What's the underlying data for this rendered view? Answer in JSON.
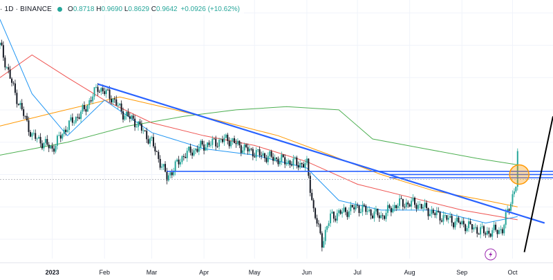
{
  "header": {
    "symbol": "· 1D · BINANCE",
    "open_label": "O",
    "open": "0.8718",
    "high_label": "H",
    "high": "0.9690",
    "low_label": "L",
    "low": "0.8629",
    "close_label": "C",
    "close": "0.9642",
    "change": "+0.0926 (+10.62%)"
  },
  "colors": {
    "up": "#26a69a",
    "down": "#131722",
    "trendline": "#2962ff",
    "ma_fast": "#2196f3",
    "ma_mid": "#ef5350",
    "ma_slow": "#ff9800",
    "ma_long": "#4caf50",
    "highlight": "#ff9800"
  },
  "chart_data": {
    "type": "candlestick",
    "xlabel": "",
    "ylabel": "",
    "x_ticks": [
      "2023",
      "Feb",
      "Mar",
      "Apr",
      "May",
      "Jun",
      "Jul",
      "Aug",
      "Sep",
      "Oct"
    ],
    "x_tick_bold": [
      "2023"
    ],
    "close_path": [
      [
        "2022-12-01",
        1.3
      ],
      [
        "2022-12-10",
        1.15
      ],
      [
        "2022-12-20",
        1.02
      ],
      [
        "2023-01-01",
        0.98
      ],
      [
        "2023-01-10",
        1.05
      ],
      [
        "2023-01-20",
        1.1
      ],
      [
        "2023-01-28",
        1.17
      ],
      [
        "2023-02-05",
        1.14
      ],
      [
        "2023-02-12",
        1.09
      ],
      [
        "2023-02-20",
        1.06
      ],
      [
        "2023-03-01",
        1.0
      ],
      [
        "2023-03-10",
        0.89
      ],
      [
        "2023-03-20",
        0.96
      ],
      [
        "2023-04-01",
        0.99
      ],
      [
        "2023-04-15",
        1.01
      ],
      [
        "2023-04-25",
        0.98
      ],
      [
        "2023-05-05",
        0.96
      ],
      [
        "2023-05-20",
        0.94
      ],
      [
        "2023-06-01",
        0.93
      ],
      [
        "2023-06-05",
        0.79
      ],
      [
        "2023-06-10",
        0.69
      ],
      [
        "2023-06-15",
        0.77
      ],
      [
        "2023-07-01",
        0.8
      ],
      [
        "2023-07-15",
        0.77
      ],
      [
        "2023-07-25",
        0.81
      ],
      [
        "2023-08-05",
        0.81
      ],
      [
        "2023-08-15",
        0.78
      ],
      [
        "2023-08-25",
        0.76
      ],
      [
        "2023-09-05",
        0.74
      ],
      [
        "2023-09-15",
        0.72
      ],
      [
        "2023-09-25",
        0.73
      ],
      [
        "2023-10-03",
        0.87
      ],
      [
        "2023-10-04",
        0.96
      ]
    ],
    "ma_fast": [
      [
        "2022-12-01",
        1.38
      ],
      [
        "2022-12-20",
        1.15
      ],
      [
        "2023-01-10",
        1.02
      ],
      [
        "2023-02-01",
        1.13
      ],
      [
        "2023-03-01",
        1.03
      ],
      [
        "2023-04-01",
        0.98
      ],
      [
        "2023-05-01",
        0.96
      ],
      [
        "2023-06-01",
        0.92
      ],
      [
        "2023-06-20",
        0.82
      ],
      [
        "2023-07-15",
        0.79
      ],
      [
        "2023-08-15",
        0.79
      ],
      [
        "2023-09-15",
        0.75
      ],
      [
        "2023-10-04",
        0.77
      ]
    ],
    "ma_mid": [
      [
        "2022-12-01",
        1.2
      ],
      [
        "2022-12-20",
        1.27
      ],
      [
        "2023-01-10",
        1.2
      ],
      [
        "2023-02-01",
        1.13
      ],
      [
        "2023-03-01",
        1.06
      ],
      [
        "2023-04-01",
        1.02
      ],
      [
        "2023-05-01",
        0.99
      ],
      [
        "2023-06-01",
        0.94
      ],
      [
        "2023-07-01",
        0.87
      ],
      [
        "2023-08-01",
        0.83
      ],
      [
        "2023-09-01",
        0.79
      ],
      [
        "2023-10-04",
        0.76
      ]
    ],
    "ma_slow": [
      [
        "2022-12-01",
        1.05
      ],
      [
        "2023-01-01",
        1.09
      ],
      [
        "2023-02-10",
        1.14
      ],
      [
        "2023-03-15",
        1.1
      ],
      [
        "2023-04-15",
        1.06
      ],
      [
        "2023-05-15",
        1.02
      ],
      [
        "2023-06-15",
        0.96
      ],
      [
        "2023-07-15",
        0.9
      ],
      [
        "2023-08-15",
        0.85
      ],
      [
        "2023-09-15",
        0.82
      ],
      [
        "2023-10-04",
        0.8
      ]
    ],
    "ma_long": [
      [
        "2022-12-01",
        0.96
      ],
      [
        "2023-01-10",
        1.0
      ],
      [
        "2023-02-15",
        1.05
      ],
      [
        "2023-03-20",
        1.08
      ],
      [
        "2023-04-20",
        1.1
      ],
      [
        "2023-05-20",
        1.11
      ],
      [
        "2023-06-20",
        1.1
      ],
      [
        "2023-07-10",
        1.01
      ],
      [
        "2023-08-10",
        0.98
      ],
      [
        "2023-09-10",
        0.95
      ],
      [
        "2023-10-04",
        0.93
      ]
    ],
    "trendlines": [
      {
        "from": [
          "2023-01-28",
          1.18
        ],
        "to": [
          "2023-10-20",
          0.75
        ]
      }
    ],
    "horizontal_levels": [
      0.91,
      0.9,
      0.89
    ],
    "level_start": "2023-03-10",
    "highlight": {
      "at": [
        "2023-10-05",
        0.9
      ]
    }
  }
}
